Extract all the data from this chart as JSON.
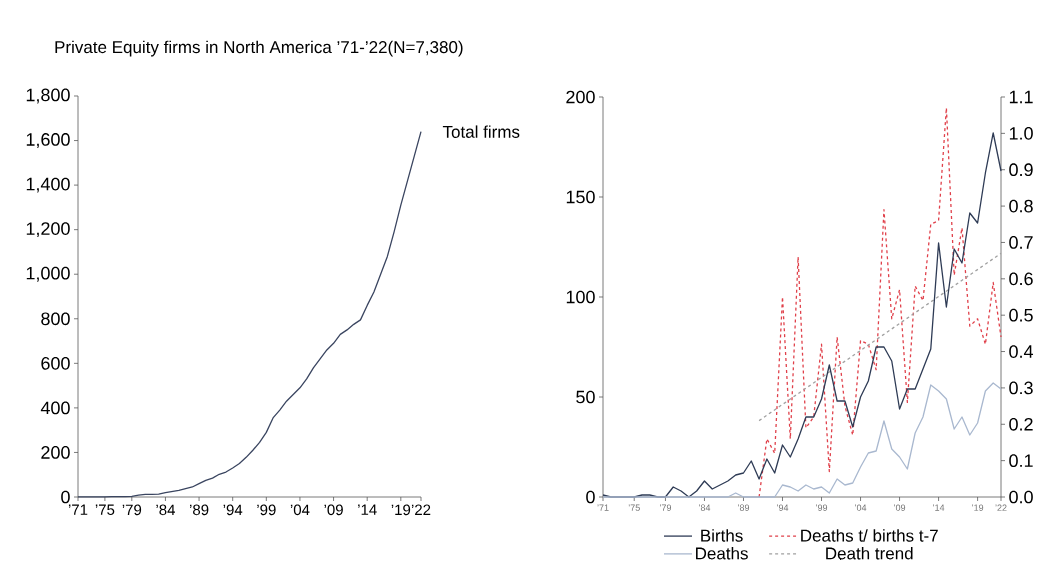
{
  "chart_data": [
    {
      "type": "line",
      "title": "Private Equity firms in North America ’71-’22(N=7,380)",
      "x": [
        1971,
        1972,
        1973,
        1974,
        1975,
        1976,
        1977,
        1978,
        1979,
        1980,
        1981,
        1982,
        1983,
        1984,
        1985,
        1986,
        1987,
        1988,
        1989,
        1990,
        1991,
        1992,
        1993,
        1994,
        1995,
        1996,
        1997,
        1998,
        1999,
        2000,
        2001,
        2002,
        2003,
        2004,
        2005,
        2006,
        2007,
        2008,
        2009,
        2010,
        2011,
        2012,
        2013,
        2014,
        2015,
        2016,
        2017,
        2018,
        2019,
        2020,
        2021,
        2022
      ],
      "xlim": [
        1971,
        2022
      ],
      "xticks": [
        {
          "value": 1971,
          "label": "’71"
        },
        {
          "value": 1975,
          "label": "’75"
        },
        {
          "value": 1979,
          "label": "’79"
        },
        {
          "value": 1984,
          "label": "’84"
        },
        {
          "value": 1989,
          "label": "’89"
        },
        {
          "value": 1994,
          "label": "’94"
        },
        {
          "value": 1999,
          "label": "’99"
        },
        {
          "value": 2004,
          "label": "’04"
        },
        {
          "value": 2009,
          "label": "’09"
        },
        {
          "value": 2014,
          "label": "’14"
        },
        {
          "value": 2019,
          "label": "’19"
        },
        {
          "value": 2022,
          "label": "’22"
        }
      ],
      "ylim": [
        0,
        1800
      ],
      "yticks": [
        0,
        200,
        400,
        600,
        800,
        {
          "value": 1000,
          "label": "1,000"
        },
        {
          "value": 1200,
          "label": "1,200"
        },
        {
          "value": 1400,
          "label": "1,400"
        },
        {
          "value": 1600,
          "label": "1,600"
        },
        {
          "value": 1800,
          "label": "1,800"
        }
      ],
      "series": [
        {
          "name": "Total firms",
          "color": "#3a4560",
          "line_style": "solid",
          "values": [
            1,
            1,
            1,
            1,
            1,
            2,
            2,
            2,
            3,
            8,
            12,
            12,
            13,
            20,
            25,
            30,
            38,
            45,
            60,
            75,
            85,
            102,
            112,
            130,
            150,
            178,
            210,
            245,
            290,
            355,
            390,
            430,
            460,
            490,
            530,
            580,
            620,
            660,
            690,
            730,
            750,
            775,
            795,
            860,
            920,
            1000,
            1080,
            1190,
            1310,
            1420,
            1530,
            1640
          ]
        }
      ]
    },
    {
      "type": "line",
      "x": [
        1971,
        1972,
        1973,
        1974,
        1975,
        1976,
        1977,
        1978,
        1979,
        1980,
        1981,
        1982,
        1983,
        1984,
        1985,
        1986,
        1987,
        1988,
        1989,
        1990,
        1991,
        1992,
        1993,
        1994,
        1995,
        1996,
        1997,
        1998,
        1999,
        2000,
        2001,
        2002,
        2003,
        2004,
        2005,
        2006,
        2007,
        2008,
        2009,
        2010,
        2011,
        2012,
        2013,
        2014,
        2015,
        2016,
        2017,
        2018,
        2019,
        2020,
        2021,
        2022
      ],
      "xlim": [
        1971,
        2022
      ],
      "xticks": [
        {
          "value": 1971,
          "label": "’71"
        },
        {
          "value": 1975,
          "label": "’75"
        },
        {
          "value": 1979,
          "label": "’79"
        },
        {
          "value": 1984,
          "label": "’84"
        },
        {
          "value": 1989,
          "label": "’89"
        },
        {
          "value": 1994,
          "label": "’94"
        },
        {
          "value": 1999,
          "label": "’99"
        },
        {
          "value": 2004,
          "label": "’04"
        },
        {
          "value": 2009,
          "label": "’09"
        },
        {
          "value": 2014,
          "label": "’14"
        },
        {
          "value": 2019,
          "label": "’19"
        },
        {
          "value": 2022,
          "label": "’22"
        }
      ],
      "ylim": [
        0,
        200
      ],
      "yticks": [
        0,
        50,
        100,
        150,
        200
      ],
      "y2lim": [
        0,
        1.1
      ],
      "y2ticks": [
        {
          "value": 0,
          "label": "0.0"
        },
        0.1,
        0.2,
        0.3,
        0.4,
        0.5,
        0.6,
        0.7,
        0.8,
        0.9,
        {
          "value": 1,
          "label": "1.0"
        },
        1.1
      ],
      "legend": "bottom",
      "series": [
        {
          "name": "Births",
          "color": "#2e3b55",
          "line_style": "solid",
          "values": [
            1,
            0,
            0,
            0,
            0,
            1,
            1,
            0,
            0,
            5,
            3,
            0,
            3,
            8,
            4,
            6,
            8,
            11,
            12,
            18,
            9,
            19,
            12,
            26,
            20,
            29,
            40,
            40,
            49,
            66,
            48,
            48,
            35,
            50,
            58,
            75,
            75,
            68,
            44,
            54,
            54,
            64,
            74,
            127,
            95,
            124,
            117,
            142,
            137,
            162,
            182,
            163
          ]
        },
        {
          "name": "Deaths t/ births t-7",
          "color": "#e0404a",
          "line_style": "dashed",
          "axis": "y2",
          "values": [
            null,
            null,
            null,
            null,
            null,
            null,
            null,
            null,
            null,
            null,
            null,
            null,
            null,
            null,
            null,
            null,
            null,
            null,
            null,
            null,
            0,
            0.16,
            0.12,
            0.55,
            0.16,
            0.66,
            0.19,
            0.22,
            0.42,
            0.07,
            0.44,
            0.25,
            0.17,
            0.43,
            0.42,
            0.35,
            0.79,
            0.49,
            0.57,
            0.26,
            0.58,
            0.54,
            0.75,
            0.76,
            1.07,
            0.61,
            0.74,
            0.47,
            0.49,
            0.42,
            0.59,
            0.44
          ]
        },
        {
          "name": "Deaths",
          "color": "#a9b8cf",
          "line_style": "solid",
          "values": [
            0,
            0,
            0,
            0,
            0,
            0,
            0,
            0,
            0,
            0,
            0,
            0,
            0,
            0,
            0,
            0,
            0,
            2,
            0,
            0,
            0,
            0,
            0,
            6,
            5,
            3,
            6,
            4,
            5,
            2,
            9,
            6,
            7,
            15,
            22,
            23,
            38,
            24,
            20,
            14,
            32,
            40,
            56,
            53,
            49,
            34,
            40,
            31,
            37,
            53,
            57,
            54
          ]
        },
        {
          "name": "Death trend",
          "color": "#a0a0a0",
          "line_style": "dashed",
          "axis": "y2",
          "x": [
            1991,
            2022
          ],
          "values": [
            0.21,
            0.67
          ]
        }
      ]
    }
  ]
}
